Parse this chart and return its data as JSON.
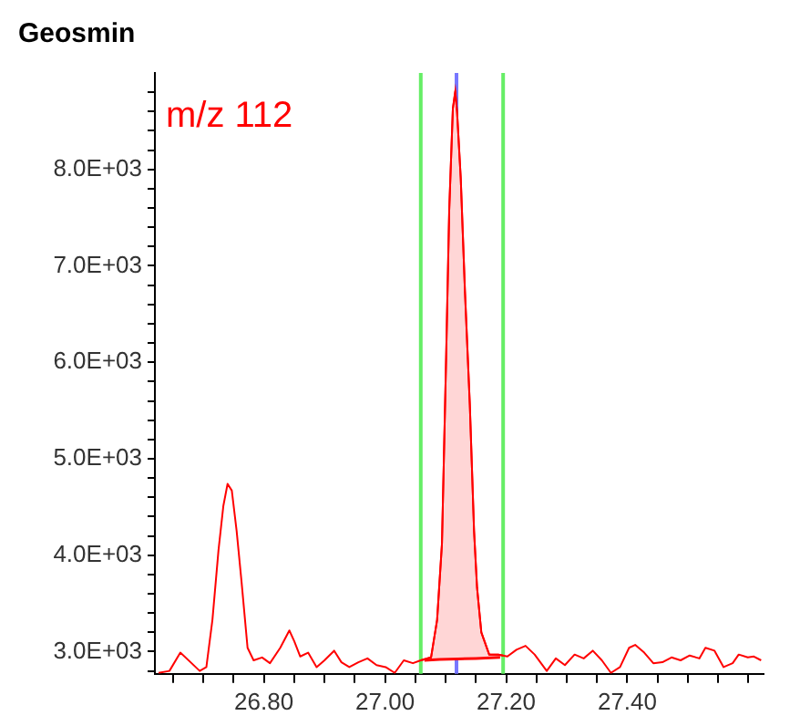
{
  "chart_data": {
    "type": "line",
    "title": "Geosmin",
    "annotations": [
      "m/z 112"
    ],
    "xlim": [
      26.62,
      27.625
    ],
    "ylim": [
      2770,
      9000
    ],
    "xticks": [
      {
        "value": 26.65,
        "label": null
      },
      {
        "value": 26.7,
        "label": null
      },
      {
        "value": 26.75,
        "label": null
      },
      {
        "value": 26.8,
        "label": "26.80"
      },
      {
        "value": 26.85,
        "label": null
      },
      {
        "value": 26.9,
        "label": null
      },
      {
        "value": 26.95,
        "label": null
      },
      {
        "value": 27.0,
        "label": "27.00"
      },
      {
        "value": 27.05,
        "label": null
      },
      {
        "value": 27.1,
        "label": null
      },
      {
        "value": 27.15,
        "label": null
      },
      {
        "value": 27.2,
        "label": "27.20"
      },
      {
        "value": 27.25,
        "label": null
      },
      {
        "value": 27.3,
        "label": null
      },
      {
        "value": 27.35,
        "label": null
      },
      {
        "value": 27.4,
        "label": "27.40"
      },
      {
        "value": 27.45,
        "label": null
      },
      {
        "value": 27.5,
        "label": null
      },
      {
        "value": 27.55,
        "label": null
      },
      {
        "value": 27.6,
        "label": null
      }
    ],
    "yticks": [
      {
        "value": 2800,
        "label": null
      },
      {
        "value": 3000,
        "label": "3.0E+03"
      },
      {
        "value": 3200,
        "label": null
      },
      {
        "value": 3400,
        "label": null
      },
      {
        "value": 3600,
        "label": null
      },
      {
        "value": 3800,
        "label": null
      },
      {
        "value": 4000,
        "label": "4.0E+03"
      },
      {
        "value": 4200,
        "label": null
      },
      {
        "value": 4400,
        "label": null
      },
      {
        "value": 4600,
        "label": null
      },
      {
        "value": 4800,
        "label": null
      },
      {
        "value": 5000,
        "label": "5.0E+03"
      },
      {
        "value": 5200,
        "label": null
      },
      {
        "value": 5400,
        "label": null
      },
      {
        "value": 5600,
        "label": null
      },
      {
        "value": 5800,
        "label": null
      },
      {
        "value": 6000,
        "label": "6.0E+03"
      },
      {
        "value": 6200,
        "label": null
      },
      {
        "value": 6400,
        "label": null
      },
      {
        "value": 6600,
        "label": null
      },
      {
        "value": 6800,
        "label": null
      },
      {
        "value": 7000,
        "label": "7.0E+03"
      },
      {
        "value": 7200,
        "label": null
      },
      {
        "value": 7400,
        "label": null
      },
      {
        "value": 7600,
        "label": null
      },
      {
        "value": 7800,
        "label": null
      },
      {
        "value": 8000,
        "label": "8.0E+03"
      },
      {
        "value": 8200,
        "label": null
      },
      {
        "value": 8400,
        "label": null
      },
      {
        "value": 8600,
        "label": null
      },
      {
        "value": 8800,
        "label": null
      }
    ],
    "grid": false,
    "legend": false,
    "marker": "none",
    "line_style": "solid",
    "ref_lines": [
      {
        "axis": "x",
        "value": 27.059,
        "color": "#66ee66"
      },
      {
        "axis": "x",
        "value": 27.195,
        "color": "#66ee66"
      },
      {
        "axis": "x",
        "value": 27.118,
        "color": "#7777ff"
      }
    ],
    "series": [
      {
        "color": "#ff0000",
        "x": [
          26.626,
          26.644,
          26.662,
          26.679,
          26.694,
          26.705,
          26.715,
          26.725,
          26.733,
          26.74,
          26.747,
          26.755,
          26.763,
          26.773,
          26.783,
          26.797,
          26.81,
          26.827,
          26.842,
          26.85,
          26.86,
          26.873,
          26.887,
          26.9,
          26.916,
          26.928,
          26.941,
          26.956,
          26.971,
          26.986,
          27.001,
          27.016,
          27.031,
          27.046,
          27.059,
          27.076,
          27.086,
          27.094,
          27.101,
          27.106,
          27.112,
          27.116,
          27.119,
          27.125,
          27.132,
          27.14,
          27.147,
          27.152,
          27.159,
          27.172,
          27.187,
          27.202,
          27.217,
          27.232,
          27.247,
          27.267,
          27.282,
          27.297,
          27.313,
          27.328,
          27.343,
          27.358,
          27.373,
          27.388,
          27.403,
          27.413,
          27.428,
          27.443,
          27.458,
          27.473,
          27.488,
          27.503,
          27.519,
          27.529,
          27.544,
          27.559,
          27.574,
          27.584,
          27.599,
          27.609,
          27.621
        ],
        "values": [
          2780,
          2800,
          2990,
          2890,
          2800,
          2840,
          3330,
          4050,
          4510,
          4740,
          4670,
          4250,
          3730,
          3040,
          2910,
          2940,
          2880,
          3040,
          3220,
          3110,
          2950,
          2990,
          2840,
          2910,
          3010,
          2890,
          2840,
          2890,
          2930,
          2860,
          2840,
          2780,
          2910,
          2880,
          2910,
          2940,
          3330,
          4120,
          6080,
          7580,
          8630,
          8810,
          8590,
          7910,
          6730,
          5560,
          4250,
          3660,
          3200,
          2970,
          2970,
          2950,
          3020,
          3060,
          2970,
          2800,
          2930,
          2860,
          2970,
          2930,
          3010,
          2910,
          2780,
          2840,
          3040,
          3070,
          2990,
          2880,
          2890,
          2940,
          2910,
          2960,
          2930,
          3040,
          3010,
          2840,
          2880,
          2970,
          2940,
          2950,
          2910
        ]
      },
      {
        "type": "line",
        "color": "#ff0000",
        "x": [
          27.065,
          27.09,
          27.12,
          27.15,
          27.19
        ],
        "values": [
          2910,
          2920,
          2925,
          2930,
          2940
        ]
      },
      {
        "type": "area",
        "color": "#ffd6d6",
        "x": [
          27.059,
          27.076,
          27.086,
          27.094,
          27.101,
          27.106,
          27.112,
          27.116,
          27.119,
          27.125,
          27.132,
          27.14,
          27.147,
          27.152,
          27.159,
          27.172,
          27.187,
          27.195
        ],
        "values": [
          2910,
          2940,
          3330,
          4120,
          6080,
          7580,
          8630,
          8810,
          8590,
          7910,
          6730,
          5560,
          4250,
          3660,
          3200,
          2970,
          2970,
          2960
        ]
      }
    ]
  }
}
